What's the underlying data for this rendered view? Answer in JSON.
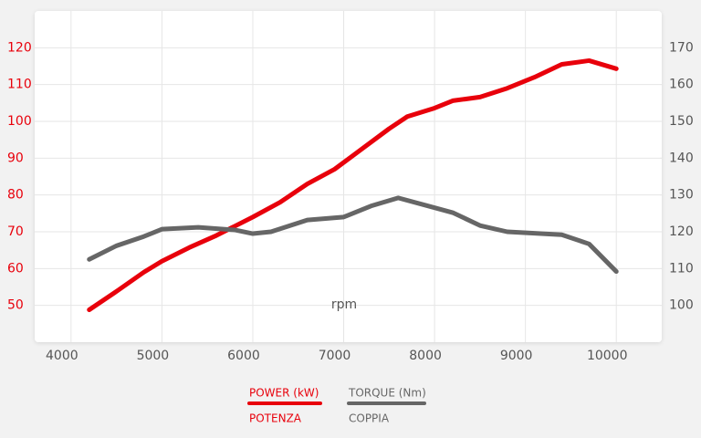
{
  "chart_data": {
    "type": "line",
    "axis_title_x": "rpm",
    "xlim": [
      3600,
      10500
    ],
    "xticks": [
      4000,
      5000,
      6000,
      7000,
      8000,
      9000,
      10000
    ],
    "ylim": [
      40,
      130
    ],
    "yticks": [
      50,
      60,
      70,
      80,
      90,
      100,
      110,
      120
    ],
    "y2lim": [
      90,
      180
    ],
    "y2ticks": [
      100,
      110,
      120,
      130,
      140,
      150,
      160,
      170
    ],
    "grid": true,
    "series": [
      {
        "name": "POWER (kW)",
        "label_it": "POTENZA",
        "color": "#e8000b",
        "axis": "y",
        "x": [
          4200,
          4500,
          4800,
          5000,
          5300,
          5600,
          6000,
          6300,
          6600,
          6900,
          7200,
          7500,
          7700,
          8000,
          8200,
          8500,
          8800,
          9100,
          9400,
          9700,
          10000
        ],
        "values": [
          48.8,
          53.8,
          59,
          62,
          65.7,
          69,
          74,
          78,
          83,
          87,
          92.5,
          98,
          101.3,
          103.6,
          105.6,
          106.6,
          109,
          112,
          115.5,
          116.5,
          114.3
        ]
      },
      {
        "name": "TORQUE (Nm)",
        "label_it": "COPPIA",
        "color": "#666666",
        "axis": "y2",
        "x": [
          4200,
          4500,
          4800,
          5000,
          5400,
          5800,
          6000,
          6200,
          6600,
          7000,
          7300,
          7600,
          7900,
          8200,
          8500,
          8800,
          9400,
          9700,
          10000
        ],
        "values": [
          112.5,
          116.2,
          118.7,
          120.7,
          121.2,
          120.5,
          119.5,
          120,
          123.2,
          124,
          127,
          129.2,
          127.2,
          125.2,
          121.7,
          120,
          119.2,
          116.7,
          109.2
        ]
      }
    ]
  }
}
